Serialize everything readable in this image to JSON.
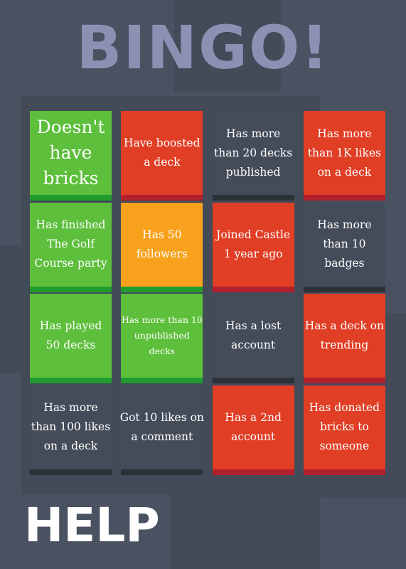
{
  "title": "BINGO!",
  "grid": {
    "rows": [
      [
        {
          "lines": [
            "Doesn't",
            "have",
            "bricks"
          ],
          "color": "#5dbf3b",
          "bar_color": "#1f9c2d"
        },
        {
          "lines": [
            "Have boosted",
            "a deck"
          ],
          "color": "#e03e25",
          "bar_color": "#b3202d"
        },
        {
          "lines": [
            "Has more",
            "than 20 decks",
            "published"
          ],
          "color": "#454c59",
          "bar_color": "#2c3037"
        },
        {
          "lines": [
            "Has more",
            "than 1K likes",
            "on a deck"
          ],
          "color": "#e03e25",
          "bar_color": "#b3202d"
        }
      ],
      [
        {
          "lines": [
            "Has finished",
            "The Golf",
            "Course party"
          ],
          "color": "#5dbf3b",
          "bar_color": "#1f9c2d"
        },
        {
          "lines": [
            "Has 50",
            "followers"
          ],
          "color": "#f7a11c",
          "bar_color": "#1f9c2d"
        },
        {
          "lines": [
            "Joined Castle",
            "1 year ago"
          ],
          "color": "#e03e25",
          "bar_color": "#b3202d"
        },
        {
          "lines": [
            "Has more",
            "than 10",
            "badges"
          ],
          "color": "#454c59",
          "bar_color": "#2c3037"
        }
      ],
      [
        {
          "lines": [
            "Has played",
            "50 decks"
          ],
          "color": "#5dbf3b",
          "bar_color": "#1f9c2d"
        },
        {
          "lines": [
            "Has more than 10",
            "unpublished",
            "decks"
          ],
          "color": "#5dbf3b",
          "bar_color": "#1f9c2d"
        },
        {
          "lines": [
            "Has a lost",
            "account"
          ],
          "color": "#454c59",
          "bar_color": "#2c3037"
        },
        {
          "lines": [
            "Has a deck on",
            "trending"
          ],
          "color": "#e03e25",
          "bar_color": "#b3202d"
        }
      ],
      [
        {
          "lines": [
            "Has more",
            "than 100 likes",
            "on a deck"
          ],
          "color": "#454c59",
          "bar_color": "#2c3037"
        },
        {
          "lines": [
            "Got 10 likes on",
            "a comment"
          ],
          "color": "#454c59",
          "bar_color": "#2c3037"
        },
        {
          "lines": [
            "Has a 2nd",
            "account"
          ],
          "color": "#e03e25",
          "bar_color": "#b3202d"
        },
        {
          "lines": [
            "Has donated",
            "bricks to",
            "someone"
          ],
          "color": "#e03e25",
          "bar_color": "#b3202d"
        }
      ]
    ]
  },
  "help_button": "HELP"
}
